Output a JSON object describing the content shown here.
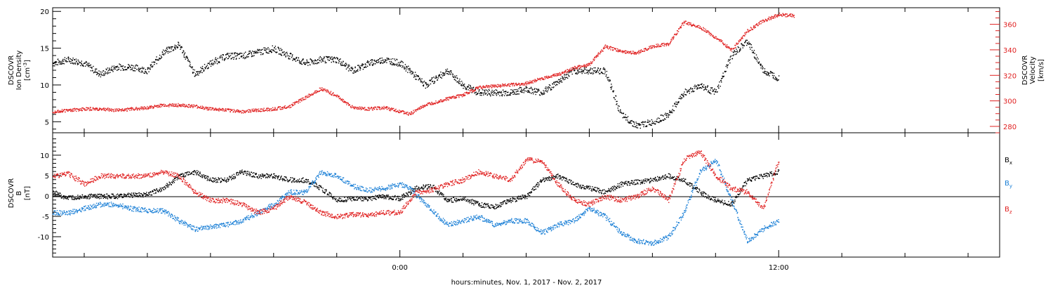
{
  "chart_data": [
    {
      "type": "scatter",
      "title": "",
      "xlabel": "hours:minutes, Nov. 1, 2017 - Nov. 2, 2017",
      "x_ticks": [
        "0:00",
        "12:00"
      ],
      "x_range_hours": [
        -11,
        19
      ],
      "left_axis": {
        "label_lines": [
          "DSCOVR",
          "Ion Density"
        ],
        "unit_lines": [
          "[cm",
          "-3",
          "]"
        ],
        "ticks": [
          5,
          10,
          15,
          20
        ],
        "range": [
          3.5,
          20.5
        ]
      },
      "right_axis": {
        "label_lines": [
          "DSCOVR",
          "Velocity",
          "[km/s]"
        ],
        "ticks": [
          280,
          300,
          320,
          340,
          360
        ],
        "range": [
          275,
          373
        ],
        "color": "#e02020"
      },
      "series": [
        {
          "name": "",
          "axis": "left",
          "color": "#000000",
          "points": [
            [
              -11,
              13
            ],
            [
              -10.5,
              13.5
            ],
            [
              -10,
              13
            ],
            [
              -9.5,
              11.5
            ],
            [
              -9,
              12.5
            ],
            [
              -8.5,
              12.5
            ],
            [
              -8,
              12
            ],
            [
              -7.5,
              14.5
            ],
            [
              -7,
              15.5
            ],
            [
              -6.5,
              11.5
            ],
            [
              -6,
              13
            ],
            [
              -5.5,
              14
            ],
            [
              -5,
              14
            ],
            [
              -4.5,
              14.5
            ],
            [
              -4,
              15
            ],
            [
              -3.5,
              14
            ],
            [
              -3,
              13
            ],
            [
              -2.5,
              13.5
            ],
            [
              -2,
              13.5
            ],
            [
              -1.5,
              12
            ],
            [
              -1,
              13
            ],
            [
              -0.5,
              13.5
            ],
            [
              0,
              13
            ],
            [
              0.3,
              12
            ],
            [
              0.8,
              10
            ],
            [
              1.5,
              12
            ],
            [
              2,
              10
            ],
            [
              2.5,
              9
            ],
            [
              3,
              9
            ],
            [
              3.5,
              9
            ],
            [
              4,
              9.5
            ],
            [
              4.5,
              9
            ],
            [
              5,
              10.5
            ],
            [
              5.5,
              12
            ],
            [
              6,
              12
            ],
            [
              6.5,
              12
            ],
            [
              7,
              6
            ],
            [
              7.5,
              4.5
            ],
            [
              8,
              5
            ],
            [
              8.5,
              6
            ],
            [
              9,
              9
            ],
            [
              9.5,
              10
            ],
            [
              10,
              9
            ],
            [
              10.5,
              14
            ],
            [
              11,
              16
            ],
            [
              11.5,
              12
            ],
            [
              12,
              11
            ]
          ]
        },
        {
          "name": "",
          "axis": "right",
          "color": "#e02020",
          "points": [
            [
              -11,
              292
            ],
            [
              -10.5,
              293
            ],
            [
              -10,
              294
            ],
            [
              -9.5,
              294
            ],
            [
              -9,
              293
            ],
            [
              -8.5,
              294
            ],
            [
              -8,
              295
            ],
            [
              -7.5,
              297
            ],
            [
              -7,
              297
            ],
            [
              -6.5,
              296
            ],
            [
              -6,
              294
            ],
            [
              -5.5,
              293
            ],
            [
              -5,
              292
            ],
            [
              -4.5,
              293
            ],
            [
              -4,
              294
            ],
            [
              -3.5,
              296
            ],
            [
              -3,
              303
            ],
            [
              -2.5,
              310
            ],
            [
              -2,
              304
            ],
            [
              -1.5,
              295
            ],
            [
              -1,
              294
            ],
            [
              -0.5,
              295
            ],
            [
              0,
              292
            ],
            [
              0.3,
              290
            ],
            [
              0.8,
              297
            ],
            [
              1.5,
              302
            ],
            [
              2,
              305
            ],
            [
              2.5,
              311
            ],
            [
              3,
              312
            ],
            [
              3.5,
              313
            ],
            [
              4,
              314
            ],
            [
              4.5,
              318
            ],
            [
              5,
              321
            ],
            [
              5.5,
              326
            ],
            [
              6,
              329
            ],
            [
              6.5,
              343
            ],
            [
              7,
              339
            ],
            [
              7.5,
              338
            ],
            [
              8,
              343
            ],
            [
              8.5,
              345
            ],
            [
              9,
              362
            ],
            [
              9.5,
              358
            ],
            [
              10,
              350
            ],
            [
              10.5,
              340
            ],
            [
              11,
              355
            ],
            [
              11.5,
              363
            ],
            [
              12,
              368
            ],
            [
              12.5,
              367
            ]
          ]
        }
      ]
    },
    {
      "type": "scatter",
      "title": "",
      "xlabel": "hours:minutes, Nov. 1, 2017 - Nov. 2, 2017",
      "x_ticks": [
        "0:00",
        "12:00"
      ],
      "x_range_hours": [
        -11,
        19
      ],
      "y_axis": {
        "label_lines": [
          "DSCOVR",
          "B"
        ],
        "unit_lines": [
          "[nT]"
        ],
        "ticks": [
          -10,
          -5,
          0,
          5,
          10
        ],
        "range": [
          -15,
          15.5
        ]
      },
      "legend": {
        "placement": "right"
      },
      "series": [
        {
          "name": "Bx",
          "name_main": "B",
          "name_sub": "x",
          "color": "#000000",
          "points": [
            [
              -11,
              1
            ],
            [
              -10.5,
              -0.5
            ],
            [
              -10,
              0
            ],
            [
              -9,
              0
            ],
            [
              -8,
              0.5
            ],
            [
              -7.5,
              2
            ],
            [
              -7,
              5
            ],
            [
              -6.5,
              6
            ],
            [
              -6,
              4
            ],
            [
              -5.5,
              4
            ],
            [
              -5,
              6
            ],
            [
              -4.5,
              5
            ],
            [
              -4,
              5
            ],
            [
              -3.5,
              4
            ],
            [
              -3,
              4
            ],
            [
              -2.5,
              2
            ],
            [
              -2,
              -1
            ],
            [
              -1.5,
              -0.5
            ],
            [
              -1,
              -0.5
            ],
            [
              -0.5,
              0
            ],
            [
              0,
              -0.5
            ],
            [
              0.5,
              2
            ],
            [
              1,
              2.5
            ],
            [
              1.5,
              -1
            ],
            [
              2,
              -0.5
            ],
            [
              2.5,
              -2
            ],
            [
              3,
              -2.5
            ],
            [
              3.5,
              -1
            ],
            [
              4,
              0
            ],
            [
              4.5,
              4
            ],
            [
              5,
              5
            ],
            [
              5.5,
              3
            ],
            [
              6,
              2
            ],
            [
              6.5,
              1
            ],
            [
              7,
              3
            ],
            [
              7.5,
              3.5
            ],
            [
              8,
              4
            ],
            [
              8.5,
              5
            ],
            [
              9,
              4
            ],
            [
              9.5,
              1
            ],
            [
              10,
              -1
            ],
            [
              10.5,
              -2
            ],
            [
              11,
              4
            ],
            [
              11.5,
              5
            ],
            [
              12,
              6
            ]
          ]
        },
        {
          "name": "By",
          "name_main": "B",
          "name_sub": "y",
          "color": "#1a7fd6",
          "points": [
            [
              -11,
              -4
            ],
            [
              -10.5,
              -4
            ],
            [
              -10,
              -3
            ],
            [
              -9.5,
              -2
            ],
            [
              -9,
              -2
            ],
            [
              -8.5,
              -3
            ],
            [
              -8,
              -3.5
            ],
            [
              -7.5,
              -3.5
            ],
            [
              -7,
              -6
            ],
            [
              -6.5,
              -8
            ],
            [
              -6,
              -7.5
            ],
            [
              -5.5,
              -7
            ],
            [
              -5,
              -6
            ],
            [
              -4.5,
              -4
            ],
            [
              -4,
              -2
            ],
            [
              -3.5,
              1
            ],
            [
              -3,
              1
            ],
            [
              -2.5,
              6
            ],
            [
              -2,
              5
            ],
            [
              -1.5,
              2.5
            ],
            [
              -1,
              1.5
            ],
            [
              -0.5,
              2
            ],
            [
              0,
              3
            ],
            [
              0.3,
              2
            ],
            [
              0.8,
              -2
            ],
            [
              1.5,
              -7
            ],
            [
              2,
              -6
            ],
            [
              2.5,
              -5
            ],
            [
              3,
              -7
            ],
            [
              3.5,
              -6
            ],
            [
              4,
              -6
            ],
            [
              4.5,
              -9
            ],
            [
              5,
              -7
            ],
            [
              5.5,
              -6
            ],
            [
              6,
              -3
            ],
            [
              6.5,
              -5
            ],
            [
              7,
              -9
            ],
            [
              7.5,
              -11
            ],
            [
              8,
              -11.5
            ],
            [
              8.5,
              -10
            ],
            [
              9,
              -4
            ],
            [
              9.5,
              6
            ],
            [
              10,
              9
            ],
            [
              10.5,
              -1
            ],
            [
              11,
              -11
            ],
            [
              11.5,
              -8
            ],
            [
              12,
              -6
            ]
          ]
        },
        {
          "name": "Bz",
          "name_main": "B",
          "name_sub": "z",
          "color": "#e02020",
          "points": [
            [
              -11,
              5
            ],
            [
              -10.5,
              5.5
            ],
            [
              -10,
              3
            ],
            [
              -9.5,
              5
            ],
            [
              -9,
              5
            ],
            [
              -8.5,
              5
            ],
            [
              -8,
              5
            ],
            [
              -7.5,
              6
            ],
            [
              -7,
              5
            ],
            [
              -6.5,
              1
            ],
            [
              -6,
              -1
            ],
            [
              -5.5,
              -1
            ],
            [
              -5,
              -2
            ],
            [
              -4.5,
              -4
            ],
            [
              -4,
              -3
            ],
            [
              -3.5,
              0
            ],
            [
              -3,
              -1.5
            ],
            [
              -2.5,
              -4
            ],
            [
              -2,
              -5
            ],
            [
              -1.5,
              -4.5
            ],
            [
              -1,
              -4.5
            ],
            [
              -0.5,
              -4
            ],
            [
              0,
              -4
            ],
            [
              0.5,
              1
            ],
            [
              1,
              1.5
            ],
            [
              1.5,
              3
            ],
            [
              2,
              4
            ],
            [
              2.5,
              6
            ],
            [
              3,
              5
            ],
            [
              3.5,
              4
            ],
            [
              4,
              9
            ],
            [
              4.5,
              8.5
            ],
            [
              5,
              3
            ],
            [
              5.5,
              -1
            ],
            [
              6,
              -2
            ],
            [
              6.5,
              0
            ],
            [
              7,
              -1
            ],
            [
              7.5,
              0
            ],
            [
              8,
              2
            ],
            [
              8.5,
              -1
            ],
            [
              9,
              9
            ],
            [
              9.5,
              11
            ],
            [
              10,
              5
            ],
            [
              10.5,
              2
            ],
            [
              11,
              1
            ],
            [
              11.5,
              -3
            ],
            [
              12,
              9
            ]
          ]
        }
      ]
    }
  ]
}
